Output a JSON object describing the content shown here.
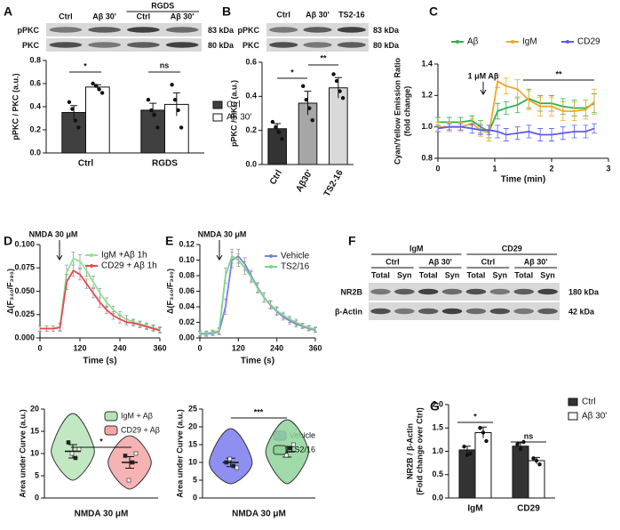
{
  "chart_data": [
    {
      "type": "bar",
      "panel": "A",
      "ylabel": [
        "pPKC / PKC (a.u.)"
      ],
      "categories": [
        "Ctrl",
        "RGDS"
      ],
      "series": [
        {
          "name": "Ctrl",
          "color": "#404040",
          "values": [
            0.35,
            0.37
          ],
          "errors": [
            0.06,
            0.06
          ],
          "points": [
            [
              0.44,
              0.38,
              0.28,
              0.22
            ],
            [
              0.46,
              0.37,
              0.33,
              0.22
            ]
          ]
        },
        {
          "name": "Aβ 30'",
          "color": "#ffffff",
          "values": [
            0.57,
            0.42
          ],
          "errors": [
            0.02,
            0.1
          ],
          "points": [
            [
              0.6,
              0.58,
              0.55,
              0.52
            ],
            [
              0.59,
              0.46,
              0.37,
              0.22
            ]
          ]
        }
      ],
      "ylim": [
        0,
        0.8
      ],
      "yticks": [
        {
          "value": 0,
          "label": "0.0"
        },
        0.2,
        0.4,
        0.6,
        0.8
      ],
      "annotations": [
        "*",
        "ns"
      ],
      "blot": {
        "lanes": [
          "Ctrl",
          "Aβ 30'",
          "Ctrl",
          "Aβ 30'"
        ],
        "groups": [
          "RGDS"
        ],
        "rows": [
          "pPKC",
          "PKC"
        ],
        "sizes": [
          "83 kDa",
          "80 kDa"
        ]
      }
    },
    {
      "type": "bar",
      "panel": "B",
      "ylabel": [
        "pPKC / PKC (a.u.)"
      ],
      "categories": [
        "Ctrl",
        "Aβ30'",
        "TS2-16"
      ],
      "values": [
        0.21,
        0.36,
        0.45
      ],
      "errors": [
        0.03,
        0.07,
        0.06
      ],
      "colors": [
        "#333333",
        "#a6a6a6",
        "#d9d9d9"
      ],
      "points": [
        [
          0.25,
          0.22,
          0.19,
          0.15
        ],
        [
          0.46,
          0.38,
          0.33,
          0.26
        ],
        [
          0.53,
          0.49,
          0.43,
          0.39
        ]
      ],
      "ylim": [
        0,
        0.6
      ],
      "yticks": [
        {
          "value": 0,
          "label": "0.0"
        },
        0.2,
        0.4,
        0.6
      ],
      "annotations": [
        "*",
        "**"
      ],
      "blot": {
        "lanes": [
          "Ctrl",
          "Aβ 30'",
          "TS2-16"
        ],
        "rows": [
          "pPKC",
          "PKC"
        ],
        "sizes": [
          "83 kDa",
          "80 kDa"
        ]
      }
    },
    {
      "type": "line",
      "panel": "C",
      "xlabel": "Time (min)",
      "ylabel": [
        "Cyan/Yellow Emission Ratio",
        "(fold change)"
      ],
      "x": [
        0,
        0.2,
        0.4,
        0.6,
        0.75,
        0.9,
        1.05,
        1.2,
        1.4,
        1.6,
        1.8,
        2.0,
        2.2,
        2.4,
        2.6,
        2.75
      ],
      "series": [
        {
          "name": "Aβ",
          "color": "#2bb24c",
          "values": [
            1.03,
            1.03,
            1.03,
            1.04,
            1.0,
            0.97,
            1.1,
            1.12,
            1.14,
            1.18,
            1.15,
            1.15,
            1.13,
            1.12,
            1.12,
            1.15
          ],
          "errors": [
            0.03,
            0.03,
            0.03,
            0.03,
            0.04,
            0.04,
            0.05,
            0.04,
            0.05,
            0.06,
            0.05,
            0.05,
            0.05,
            0.05,
            0.05,
            0.06
          ]
        },
        {
          "name": "IgM",
          "color": "#f5a623",
          "values": [
            1.0,
            1.0,
            1.0,
            1.02,
            0.98,
            0.96,
            1.29,
            1.26,
            1.24,
            1.17,
            1.13,
            1.13,
            1.1,
            1.1,
            1.11,
            1.16
          ],
          "errors": [
            0.03,
            0.03,
            0.03,
            0.03,
            0.04,
            0.05,
            0.04,
            0.05,
            0.06,
            0.06,
            0.06,
            0.06,
            0.06,
            0.06,
            0.06,
            0.08
          ]
        },
        {
          "name": "CD29",
          "color": "#5b5bf0",
          "values": [
            0.99,
            1.0,
            1.0,
            0.99,
            0.98,
            0.98,
            0.97,
            0.95,
            0.96,
            0.97,
            0.95,
            0.95,
            0.96,
            0.97,
            0.97,
            0.99
          ],
          "errors": [
            0.02,
            0.02,
            0.02,
            0.03,
            0.03,
            0.03,
            0.04,
            0.04,
            0.04,
            0.04,
            0.04,
            0.04,
            0.04,
            0.04,
            0.04,
            0.03
          ]
        }
      ],
      "xlim": [
        0,
        3
      ],
      "xticks": [
        0,
        1,
        2,
        3
      ],
      "ylim": [
        0.8,
        1.4
      ],
      "yticks": [
        0.8,
        {
          "value": 1,
          "label": "1.0"
        },
        1.2,
        1.4
      ],
      "annotations": [
        "1 μM Aβ",
        "**"
      ]
    },
    {
      "type": "line",
      "panel": "D",
      "xlabel": "Time (s)",
      "ylabel": [
        "Δ(F₃₄₀/F₃₈₀)"
      ],
      "x": [
        0,
        20,
        40,
        60,
        80,
        100,
        120,
        140,
        160,
        180,
        200,
        220,
        240,
        260,
        280,
        300,
        320,
        340,
        360
      ],
      "series": [
        {
          "name": "IgM +Aβ 1h",
          "color": "#8ee88e",
          "values": [
            0.01,
            0.01,
            0.01,
            0.012,
            0.07,
            0.085,
            0.082,
            0.072,
            0.06,
            0.048,
            0.038,
            0.03,
            0.024,
            0.02,
            0.017,
            0.015,
            0.013,
            0.011,
            0.009
          ],
          "errors": [
            0.003,
            0.003,
            0.003,
            0.004,
            0.008,
            0.007,
            0.007,
            0.006,
            0.006,
            0.005,
            0.005,
            0.004,
            0.004,
            0.004,
            0.003,
            0.003,
            0.003,
            0.003,
            0.003
          ]
        },
        {
          "name": "CD29 + Aβ 1h",
          "color": "#e8484f",
          "values": [
            0.01,
            0.01,
            0.01,
            0.011,
            0.06,
            0.072,
            0.068,
            0.058,
            0.048,
            0.038,
            0.03,
            0.024,
            0.02,
            0.017,
            0.016,
            0.014,
            0.012,
            0.01,
            0.008
          ],
          "errors": [
            0.003,
            0.003,
            0.003,
            0.004,
            0.008,
            0.006,
            0.006,
            0.005,
            0.005,
            0.005,
            0.004,
            0.004,
            0.004,
            0.003,
            0.003,
            0.003,
            0.003,
            0.003,
            0.003
          ]
        }
      ],
      "xlim": [
        0,
        360
      ],
      "xticks": [
        0,
        120,
        240,
        360
      ],
      "ylim": [
        0,
        0.1
      ],
      "yticks": [
        {
          "value": 0,
          "label": "0.000"
        },
        {
          "value": 0.025,
          "label": "0.025"
        },
        {
          "value": 0.05,
          "label": "0.050"
        },
        {
          "value": 0.075,
          "label": "0.075"
        },
        {
          "value": 0.1,
          "label": "0.100"
        }
      ],
      "annotations": [
        "NMDA 30 μM"
      ]
    },
    {
      "type": "violin",
      "xlabel": "NMDA 30 μM",
      "ylabel": [
        "Area under Curve (a.u.)"
      ],
      "categories": [
        "IgM + Aβ",
        "CD29 + Aβ"
      ],
      "colors": [
        "#b7e4b7",
        "#f4a6a6"
      ],
      "values": [
        10.5,
        8
      ],
      "errors": [
        1.5,
        1.3
      ],
      "ranges": [
        [
          4,
          19
        ],
        [
          2,
          14
        ]
      ],
      "points": [
        [
          12.5,
          10,
          9,
          11
        ],
        [
          9.5,
          4,
          8,
          10
        ]
      ],
      "ylim": [
        0,
        20
      ],
      "yticks": [
        0,
        5,
        10,
        15,
        20
      ],
      "annotations": [
        "*"
      ]
    },
    {
      "type": "line",
      "panel": "E",
      "xlabel": "Time (s)",
      "ylabel": [
        "Δ(F₃₄₀/F₃₈₀)"
      ],
      "x": [
        0,
        20,
        40,
        60,
        80,
        100,
        120,
        140,
        160,
        180,
        200,
        220,
        240,
        260,
        280,
        300,
        320,
        340,
        360
      ],
      "series": [
        {
          "name": "Vehicle",
          "color": "#7b7bef",
          "values": [
            0.005,
            0.005,
            0.006,
            0.008,
            0.04,
            0.1,
            0.105,
            0.095,
            0.08,
            0.065,
            0.052,
            0.042,
            0.034,
            0.027,
            0.022,
            0.018,
            0.015,
            0.012,
            0.01
          ],
          "errors": [
            0.003,
            0.003,
            0.003,
            0.004,
            0.01,
            0.01,
            0.009,
            0.008,
            0.007,
            0.006,
            0.006,
            0.005,
            0.005,
            0.004,
            0.004,
            0.004,
            0.003,
            0.003,
            0.003
          ]
        },
        {
          "name": "TS2/16",
          "color": "#7fd38b",
          "values": [
            0.006,
            0.006,
            0.007,
            0.009,
            0.08,
            0.105,
            0.1,
            0.09,
            0.078,
            0.064,
            0.052,
            0.043,
            0.035,
            0.029,
            0.024,
            0.02,
            0.016,
            0.013,
            0.011
          ],
          "errors": [
            0.003,
            0.003,
            0.003,
            0.004,
            0.01,
            0.009,
            0.008,
            0.008,
            0.007,
            0.006,
            0.006,
            0.005,
            0.005,
            0.004,
            0.004,
            0.004,
            0.003,
            0.003,
            0.003
          ]
        }
      ],
      "xlim": [
        0,
        360
      ],
      "xticks": [
        0,
        120,
        240,
        360
      ],
      "ylim": [
        0,
        0.12
      ],
      "yticks": [
        {
          "value": 0,
          "label": "0.00"
        },
        {
          "value": 0.02,
          "label": "0.02"
        },
        {
          "value": 0.04,
          "label": "0.04"
        },
        {
          "value": 0.06,
          "label": "0.06"
        },
        {
          "value": 0.08,
          "label": "0.08"
        },
        {
          "value": 0.1,
          "label": "0.10"
        },
        {
          "value": 0.12,
          "label": "0.12"
        }
      ],
      "annotations": [
        "NMDA 30 μM"
      ]
    },
    {
      "type": "violin",
      "xlabel": "NMDA 30 μM",
      "ylabel": [
        "Area under Curve (a.u.)"
      ],
      "categories": [
        "Vehicle",
        "TS2/16"
      ],
      "colors": [
        "#7b7bef",
        "#8fd39a"
      ],
      "values": [
        10,
        13
      ],
      "errors": [
        1.2,
        1.5
      ],
      "ranges": [
        [
          4,
          19.5
        ],
        [
          4,
          22
        ]
      ],
      "points": [
        [
          10,
          11,
          9,
          8.5
        ],
        [
          13,
          12,
          14,
          15
        ]
      ],
      "ylim": [
        0,
        25
      ],
      "yticks": [
        0,
        5,
        10,
        15,
        20,
        25
      ],
      "annotations": [
        "***"
      ]
    },
    {
      "type": "bar",
      "panel": "G",
      "ylabel": [
        "NR2B / β-Actin",
        "(Fold change over Ctrl)"
      ],
      "categories": [
        "IgM",
        "CD29"
      ],
      "series": [
        {
          "name": "Ctrl",
          "color": "#333333",
          "values": [
            1.03,
            1.11
          ],
          "errors": [
            0.08,
            0.07
          ],
          "points": [
            [
              1.1,
              0.92,
              0.95
            ],
            [
              1.15,
              1.05,
              1.2
            ]
          ]
        },
        {
          "name": "Aβ 30'",
          "color": "#ffffff",
          "values": [
            1.4,
            0.8
          ],
          "errors": [
            0.12,
            0.07
          ],
          "points": [
            [
              1.5,
              1.4,
              1.22
            ],
            [
              0.85,
              0.8,
              0.72
            ]
          ]
        }
      ],
      "ylim": [
        0,
        2
      ],
      "yticks": [
        {
          "value": 0,
          "label": "0.0"
        },
        0.5,
        {
          "value": 1,
          "label": "1.0"
        },
        1.5,
        {
          "value": 2,
          "label": "2.0"
        }
      ],
      "annotations": [
        "*",
        "ns"
      ]
    }
  ],
  "western_blot": {
    "panel": "F",
    "groups": [
      "IgM",
      "CD29"
    ],
    "conditions": [
      "Ctrl",
      "Aβ 30'",
      "Ctrl",
      "Aβ 30'"
    ],
    "lanes": [
      "Total",
      "Syn",
      "Total",
      "Syn",
      "Total",
      "Syn",
      "Total",
      "Syn"
    ],
    "rows": [
      "NR2B",
      "β-Actin"
    ],
    "sizes": [
      "180 kDa",
      "42 kDa"
    ]
  }
}
